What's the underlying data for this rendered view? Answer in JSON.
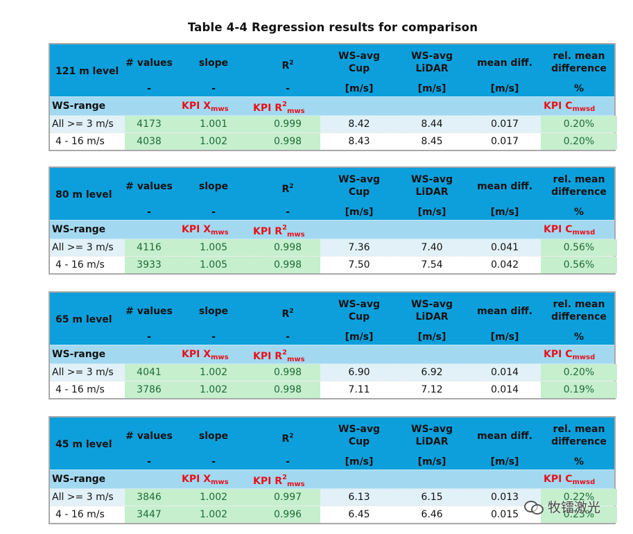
{
  "title": "Table 4-4 Regression results for comparison",
  "header_labels": {
    "values": "# values",
    "slope": "slope",
    "r": "R",
    "r_sup": "2",
    "wscup_l1": "WS-avg",
    "wscup_l2": "Cup",
    "wslidar_l1": "WS-avg",
    "wslidar_l2": "LiDAR",
    "meandiff": "mean diff.",
    "relmean_l1": "rel. mean",
    "relmean_l2": "difference"
  },
  "unit_labels": {
    "values": "-",
    "slope": "-",
    "r2": "-",
    "cup": "[m/s]",
    "lidar": "[m/s]",
    "meandiff": "[m/s]",
    "rel": "%"
  },
  "kpi_labels": {
    "wsrange": "WS-range",
    "kpi_x": "KPI X",
    "kpi_x_sub": "mws",
    "kpi_r": "KPI R",
    "kpi_r_sup": "2",
    "kpi_r_sub": "mws",
    "kpi_c": "KPI C",
    "kpi_c_sub": "mwsd"
  },
  "tables": [
    {
      "level": "121 m level",
      "rows": [
        {
          "range": "All >= 3 m/s",
          "values": "4173",
          "slope": "1.001",
          "r2": "0.999",
          "cup": "8.42",
          "lidar": "8.44",
          "meandiff": "0.017",
          "rel": "0.20%"
        },
        {
          "range": "4 - 16 m/s",
          "values": "4038",
          "slope": "1.002",
          "r2": "0.998",
          "cup": "8.43",
          "lidar": "8.45",
          "meandiff": "0.017",
          "rel": "0.20%"
        }
      ]
    },
    {
      "level": "80 m level",
      "rows": [
        {
          "range": "All >= 3 m/s",
          "values": "4116",
          "slope": "1.005",
          "r2": "0.998",
          "cup": "7.36",
          "lidar": "7.40",
          "meandiff": "0.041",
          "rel": "0.56%"
        },
        {
          "range": "4 - 16 m/s",
          "values": "3933",
          "slope": "1.005",
          "r2": "0.998",
          "cup": "7.50",
          "lidar": "7.54",
          "meandiff": "0.042",
          "rel": "0.56%"
        }
      ]
    },
    {
      "level": "65 m level",
      "rows": [
        {
          "range": "All >= 3 m/s",
          "values": "4041",
          "slope": "1.002",
          "r2": "0.998",
          "cup": "6.90",
          "lidar": "6.92",
          "meandiff": "0.014",
          "rel": "0.20%"
        },
        {
          "range": "4 - 16 m/s",
          "values": "3786",
          "slope": "1.002",
          "r2": "0.998",
          "cup": "7.11",
          "lidar": "7.12",
          "meandiff": "0.014",
          "rel": "0.19%"
        }
      ]
    },
    {
      "level": "45 m level",
      "rows": [
        {
          "range": "All >= 3 m/s",
          "values": "3846",
          "slope": "1.002",
          "r2": "0.997",
          "cup": "6.13",
          "lidar": "6.15",
          "meandiff": "0.013",
          "rel": "0.22%"
        },
        {
          "range": "4 - 16 m/s",
          "values": "3447",
          "slope": "1.002",
          "r2": "0.996",
          "cup": "6.45",
          "lidar": "6.46",
          "meandiff": "0.015",
          "rel": "0.23%"
        }
      ]
    }
  ],
  "watermark": {
    "text": "牧镭激光",
    "icon": "wechat-icon"
  }
}
